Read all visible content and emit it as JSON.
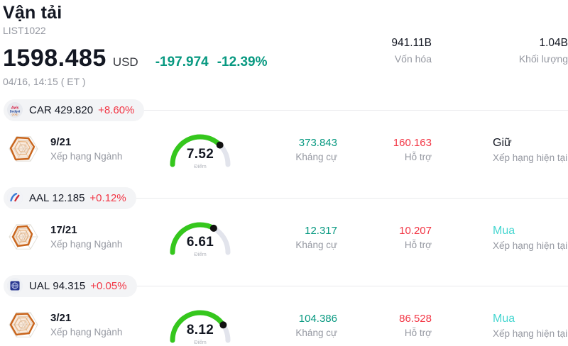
{
  "header": {
    "title": "Vận tải",
    "subtitle": "LIST1022",
    "price": "1598.485",
    "currency": "USD",
    "change_abs": "-197.974",
    "change_pct": "-12.39%",
    "timestamp": "04/16, 14:15  ( ET )",
    "market_cap": {
      "value": "941.11B",
      "label": "Vốn hóa"
    },
    "volume": {
      "value": "1.04B",
      "label": "Khối lượng"
    }
  },
  "labels": {
    "industry_rank": "Xếp hạng Ngành",
    "score": "Điểm",
    "resistance": "Kháng cự",
    "support": "Hỗ trợ",
    "current_rating": "Xếp hạng hiện tại"
  },
  "stocks": [
    {
      "ticker": "CAR",
      "price": "429.820",
      "change": "+8.60%",
      "rank": "9/21",
      "score": 7.52,
      "resistance": "373.843",
      "support": "160.163",
      "rating": "Giữ",
      "rating_color": "#131722"
    },
    {
      "ticker": "AAL",
      "price": "12.185",
      "change": "+0.12%",
      "rank": "17/21",
      "score": 6.61,
      "resistance": "12.317",
      "support": "10.207",
      "rating": "Mua",
      "rating_color": "#45d6d0"
    },
    {
      "ticker": "UAL",
      "price": "94.315",
      "change": "+0.05%",
      "rank": "3/21",
      "score": 8.12,
      "resistance": "104.386",
      "support": "86.528",
      "rating": "Mua",
      "rating_color": "#45d6d0"
    }
  ],
  "colors": {
    "text": "#131722",
    "muted": "#9598a1",
    "teal": "#089981",
    "red": "#f23645",
    "cyan": "#45d6d0",
    "green": "#35c71d",
    "track": "#e2e4ec",
    "pill-bg": "#f3f4f6",
    "rule": "#e9eaec"
  }
}
